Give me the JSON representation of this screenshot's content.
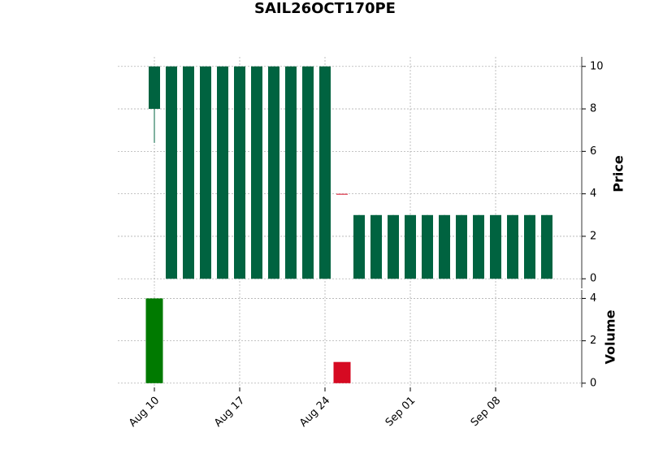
{
  "chart_data": {
    "type": "candlestick",
    "title": "SAIL26OCT170PE",
    "categories": [
      "Aug 10",
      null,
      null,
      null,
      null,
      "Aug 17",
      null,
      null,
      null,
      null,
      "Aug 24",
      null,
      null,
      null,
      null,
      "Sep 01",
      null,
      null,
      null,
      null,
      "Sep 08",
      null,
      null,
      null
    ],
    "open": [
      8,
      0,
      0,
      0,
      0,
      0,
      0,
      0,
      0,
      0,
      0,
      4,
      0,
      0,
      0,
      0,
      0,
      0,
      0,
      0,
      0,
      0,
      0,
      0
    ],
    "high": [
      10,
      10,
      10,
      10,
      10,
      10,
      10,
      10,
      10,
      10,
      10,
      4,
      3,
      3,
      3,
      3,
      3,
      3,
      3,
      3,
      3,
      3,
      3,
      3
    ],
    "low": [
      6.4,
      0,
      0,
      0,
      0,
      0,
      0,
      0,
      0,
      0,
      0,
      4,
      0,
      0,
      0,
      0,
      0,
      0,
      0,
      0,
      0,
      0,
      0,
      0
    ],
    "close": [
      10,
      10,
      10,
      10,
      10,
      10,
      10,
      10,
      10,
      10,
      10,
      4,
      3,
      3,
      3,
      3,
      3,
      3,
      3,
      3,
      3,
      3,
      3,
      3
    ],
    "volume": [
      4,
      0,
      0,
      0,
      0,
      0,
      0,
      0,
      0,
      0,
      0,
      1,
      0,
      0,
      0,
      0,
      0,
      0,
      0,
      0,
      0,
      0,
      0,
      0
    ],
    "up_color": "#006340",
    "down_color": "#d60a22",
    "volume_up_color": "#007a00",
    "volume_down_color": "#d60a22",
    "ylabel": "Price",
    "ylim": [
      -0.45,
      10.45
    ],
    "yticks": [
      0,
      2,
      4,
      6,
      8,
      10
    ],
    "volume_label": "Volume",
    "volume_ylim": [
      -0.2,
      4.4
    ],
    "volume_yticks": [
      0,
      2,
      4
    ],
    "grid": true
  }
}
